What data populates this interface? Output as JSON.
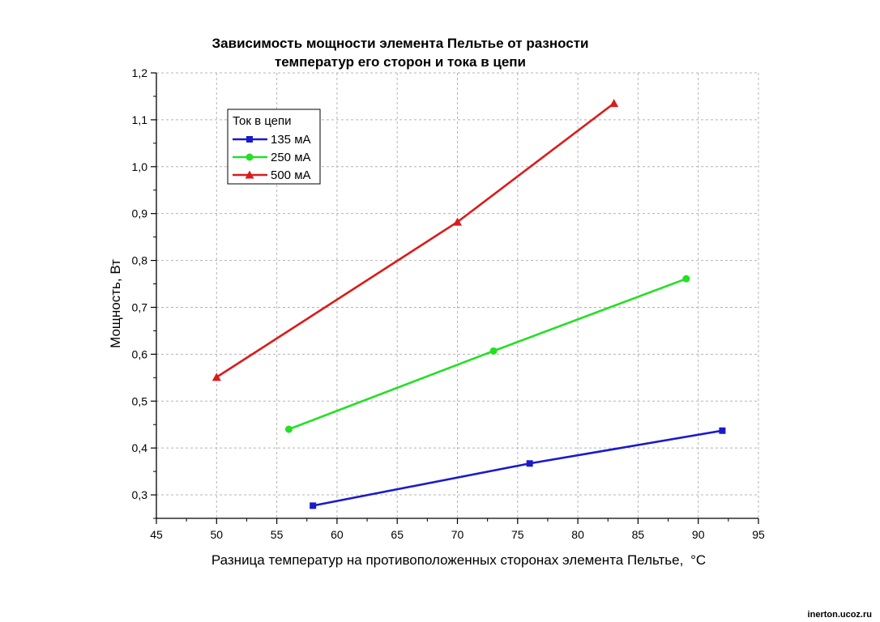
{
  "chart_data": {
    "type": "line",
    "title": [
      "Зависимость мощности элемента Пельтье от разности",
      "температур его сторон и тока в цепи"
    ],
    "xlabel": "Разница температур на противоположенных сторонах элемента Пельтье,",
    "xlabel_unit": "°C",
    "ylabel": "Мощность, Вт",
    "xlim": [
      45,
      95
    ],
    "ylim": [
      0.25,
      1.2
    ],
    "x_ticks": [
      45,
      50,
      55,
      60,
      65,
      70,
      75,
      80,
      85,
      90,
      95
    ],
    "x_tick_labels": [
      "45",
      "50",
      "55",
      "60",
      "65",
      "70",
      "75",
      "80",
      "85",
      "90",
      "95"
    ],
    "y_ticks": [
      0.3,
      0.4,
      0.5,
      0.6,
      0.7,
      0.8,
      0.9,
      1.0,
      1.1,
      1.2
    ],
    "y_tick_labels": [
      "0,3",
      "0,4",
      "0,5",
      "0,6",
      "0,7",
      "0,8",
      "0,9",
      "1,0",
      "1,1",
      "1,2"
    ],
    "grid": true,
    "legend_title": "Ток в цепи",
    "legend_position": "top-left",
    "series": [
      {
        "name": "135 мА",
        "color": "#1a1acc",
        "marker": "square",
        "x": [
          58,
          76,
          92
        ],
        "y": [
          0.277,
          0.367,
          0.437
        ]
      },
      {
        "name": "250 мА",
        "color": "#22e022",
        "marker": "circle",
        "x": [
          56,
          73,
          89
        ],
        "y": [
          0.44,
          0.607,
          0.761
        ]
      },
      {
        "name": "500 мА",
        "color": "#dd1a1a",
        "marker": "triangle",
        "x": [
          50,
          70,
          83
        ],
        "y": [
          0.551,
          0.882,
          1.135
        ]
      }
    ]
  },
  "watermark": "inerton.ucoz.ru"
}
